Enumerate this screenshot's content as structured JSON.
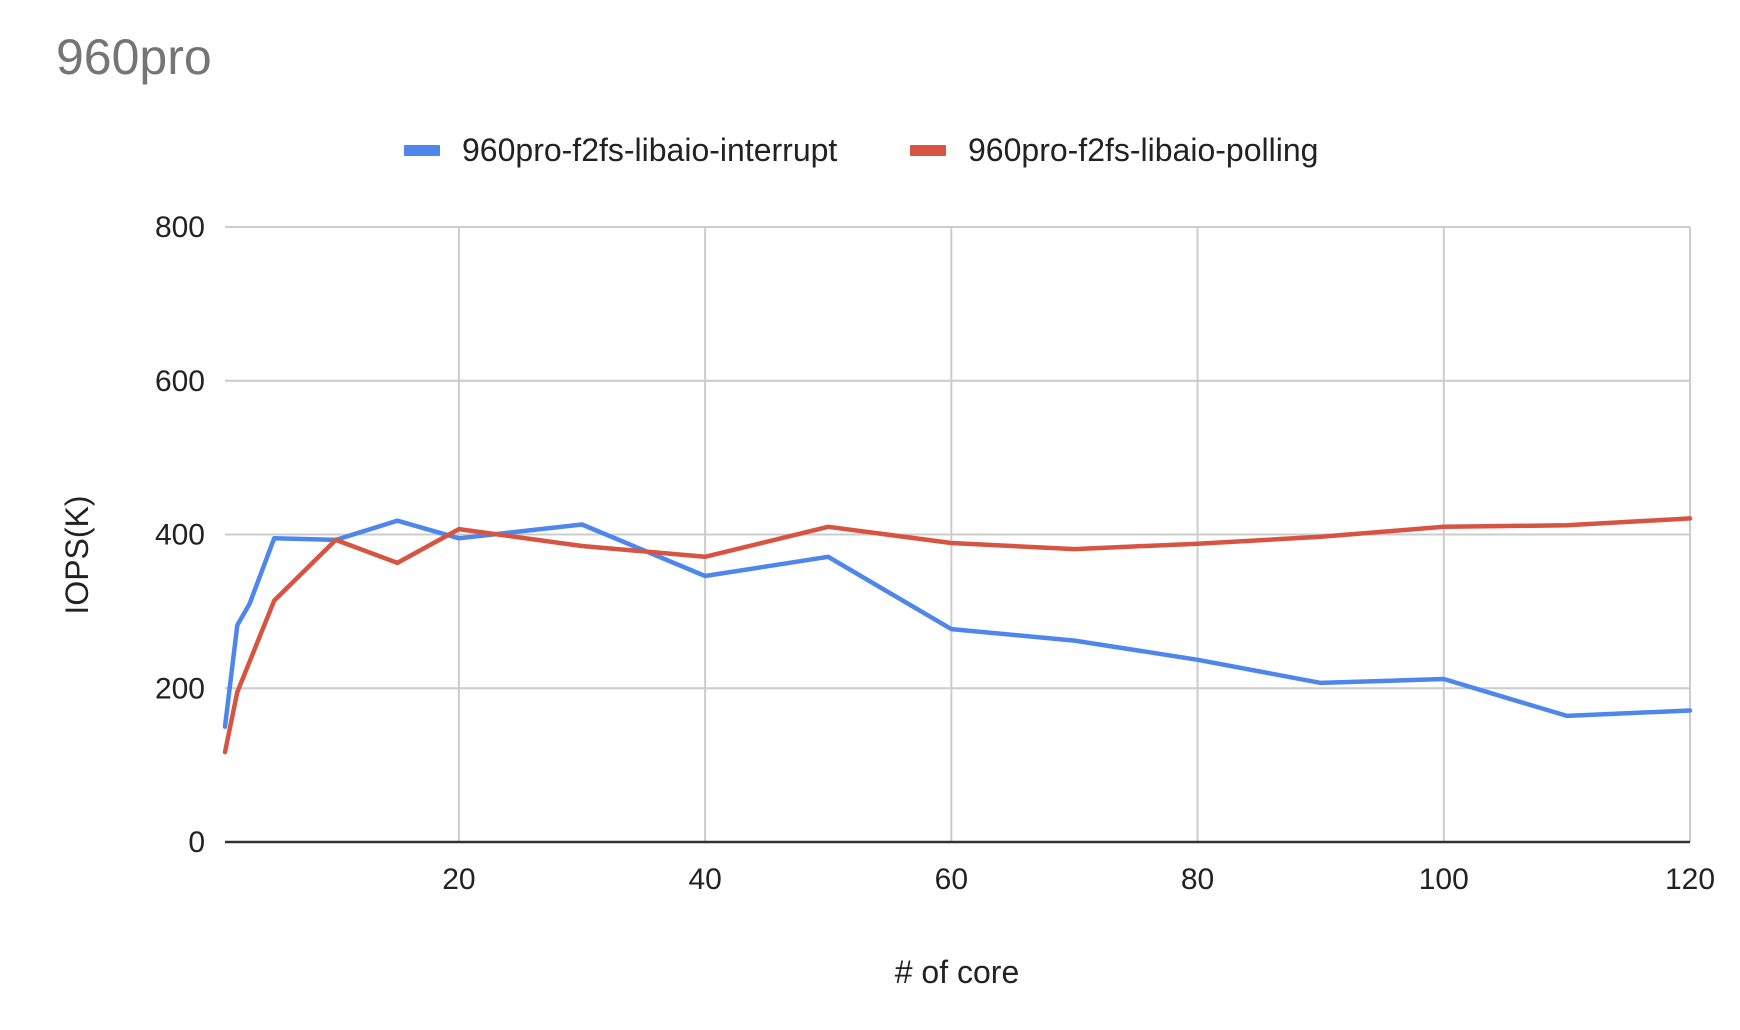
{
  "chart_data": {
    "type": "line",
    "title": "960pro",
    "xlabel": "# of core",
    "ylabel": "IOPS(K)",
    "xlim": [
      1,
      120
    ],
    "ylim": [
      0,
      800
    ],
    "xticks": [
      20,
      40,
      60,
      80,
      100,
      120
    ],
    "yticks": [
      0,
      200,
      400,
      600,
      800
    ],
    "grid": true,
    "legend_position": "top",
    "series": [
      {
        "name": "960pro-f2fs-libaio-interrupt",
        "color": "#4f86ec",
        "x": [
          1,
          2,
          3,
          5,
          10,
          15,
          20,
          30,
          40,
          50,
          60,
          70,
          80,
          90,
          100,
          110,
          120
        ],
        "y": [
          150,
          282,
          310,
          395,
          393,
          418,
          395,
          413,
          346,
          371,
          277,
          262,
          237,
          207,
          212,
          164,
          171
        ]
      },
      {
        "name": "960pro-f2fs-libaio-polling",
        "color": "#d75442",
        "x": [
          1,
          2,
          5,
          10,
          15,
          20,
          30,
          40,
          50,
          60,
          70,
          80,
          90,
          100,
          110,
          120
        ],
        "y": [
          117,
          195,
          314,
          393,
          363,
          407,
          385,
          371,
          410,
          389,
          381,
          388,
          397,
          410,
          412,
          421
        ]
      }
    ]
  }
}
